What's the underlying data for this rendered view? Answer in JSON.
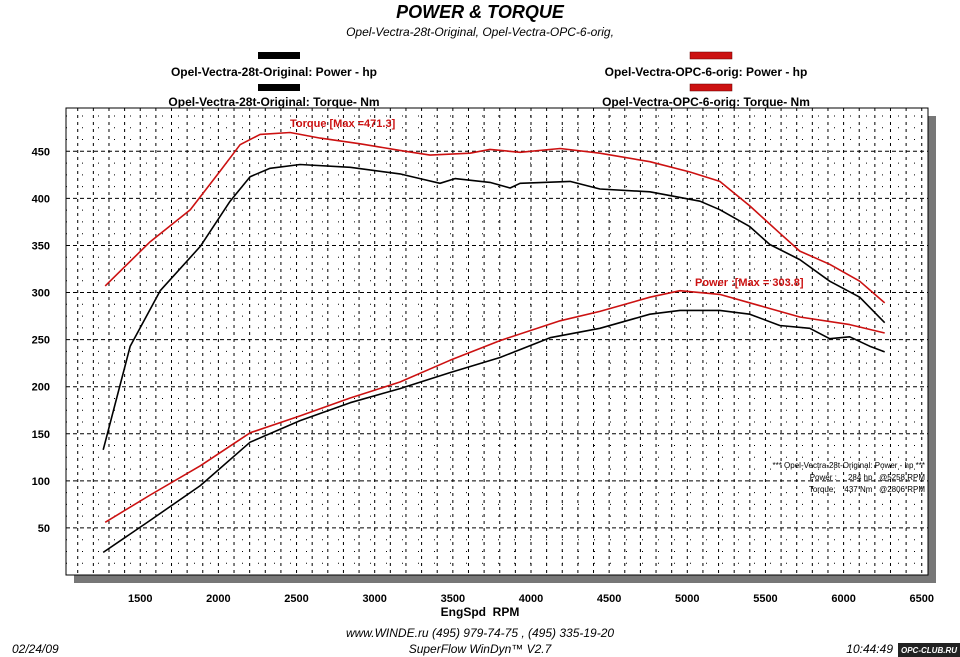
{
  "chart_data": {
    "type": "line",
    "title": "POWER & TORQUE",
    "subtitle": "Opel-Vectra-28t-Original, Opel-Vectra-OPC-6-orig,",
    "xlabel": "EngSpd  RPM",
    "ylabel": "",
    "xlim": [
      1025,
      6540
    ],
    "ylim": [
      0,
      496
    ],
    "xticks": [
      1500,
      2000,
      2500,
      3000,
      3500,
      4000,
      4500,
      5000,
      5500,
      6000,
      6500
    ],
    "yticks": [
      50,
      100,
      150,
      200,
      250,
      300,
      350,
      400,
      450
    ],
    "grid": true,
    "legend": [
      {
        "label": "Opel-Vectra-28t-Original: Power -  hp",
        "color": "#000000"
      },
      {
        "label": "Opel-Vectra-28t-Original: Torque-  Nm",
        "color": "#000000"
      },
      {
        "label": "Opel-Vectra-OPC-6-orig: Power -  hp",
        "color": "#cc1111"
      },
      {
        "label": "Opel-Vectra-OPC-6-orig: Torque-  Nm",
        "color": "#cc1111"
      }
    ],
    "series": [
      {
        "name": "Opel-Vectra-28t-Original: Torque",
        "color": "#000000",
        "x": [
          1263,
          1436,
          1628,
          1884,
          2075,
          2203,
          2331,
          2523,
          2843,
          3162,
          3290,
          3418,
          3514,
          3738,
          3866,
          3930,
          4250,
          4441,
          4761,
          5081,
          5208,
          5400,
          5528,
          5720,
          5911,
          6103,
          6263
        ],
        "y": [
          133,
          243,
          302,
          349,
          397,
          423,
          432,
          436,
          433,
          426,
          421,
          416,
          421,
          417,
          411,
          416,
          418,
          410,
          407,
          397,
          388,
          370,
          351,
          335,
          312,
          295,
          268
        ]
      },
      {
        "name": "Opel-Vectra-OPC-6-orig: Torque",
        "color": "#cc1111",
        "x": [
          1276,
          1564,
          1820,
          2011,
          2139,
          2267,
          2459,
          2651,
          2907,
          3162,
          3354,
          3610,
          3738,
          3930,
          4186,
          4441,
          4761,
          5017,
          5208,
          5400,
          5592,
          5720,
          5911,
          6103,
          6263
        ],
        "y": [
          307,
          354,
          388,
          429,
          457,
          468,
          470,
          464,
          458,
          451,
          446,
          448,
          452,
          449,
          453,
          448,
          439,
          428,
          418,
          392,
          363,
          344,
          330,
          312,
          289
        ]
      },
      {
        "name": "Opel-Vectra-28t-Original: Power",
        "color": "#000000",
        "x": [
          1263,
          1564,
          1884,
          2203,
          2523,
          2843,
          3162,
          3482,
          3802,
          4122,
          4441,
          4761,
          4953,
          5208,
          5400,
          5592,
          5784,
          5911,
          6039,
          6167,
          6263
        ],
        "y": [
          24,
          58,
          95,
          141,
          164,
          183,
          198,
          215,
          231,
          252,
          262,
          277,
          281,
          281,
          277,
          265,
          262,
          251,
          253,
          243,
          237
        ]
      },
      {
        "name": "Opel-Vectra-OPC-6-orig: Power",
        "color": "#cc1111",
        "x": [
          1276,
          1564,
          1884,
          2203,
          2523,
          2843,
          3162,
          3482,
          3802,
          4186,
          4441,
          4761,
          4953,
          5208,
          5464,
          5720,
          6039,
          6263
        ],
        "y": [
          56,
          85,
          116,
          151,
          169,
          188,
          205,
          228,
          249,
          270,
          280,
          295,
          302,
          298,
          286,
          274,
          266,
          257
        ]
      }
    ],
    "annotations": {
      "torque_max": "Torque [Max =471.3]",
      "power_max": "Power :[Max = 303.8]",
      "summary_title": "*** Opel-Vectra-28t-Original: Power -  hp ***",
      "summary_power": "Power :     284 hp   @5258 RPM",
      "summary_torque": "Torque:    437 Nm   @2806 RPM"
    }
  },
  "footer": {
    "contact": "www.WINDE.ru  (495) 979-74-75 , (495) 335-19-20",
    "software": "SuperFlow WinDyn™ V2.7",
    "date": "02/24/09",
    "time": "10:44:49",
    "watermark": "OPC-CLUB.RU"
  }
}
